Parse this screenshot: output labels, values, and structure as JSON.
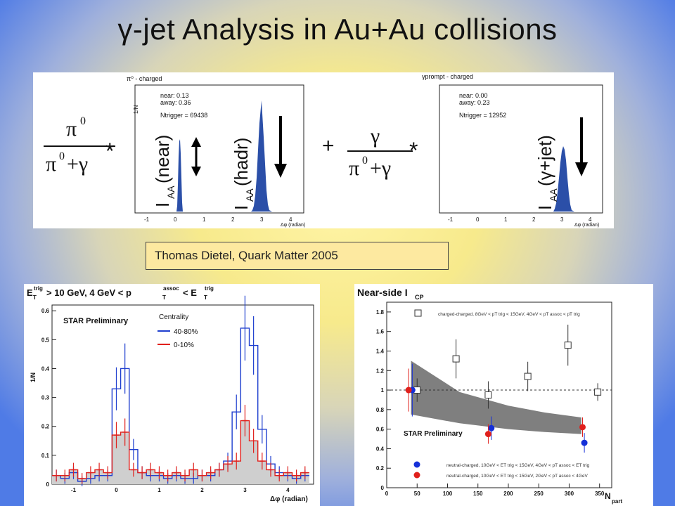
{
  "slide": {
    "title": "γ-jet Analysis in Au+Au collisions",
    "credit": "Thomas Dietel, Quark Matter 2005"
  },
  "top_panel": {
    "eq_pi0_num": "π",
    "eq_pi0_sup": "0",
    "eq_den_term": "+γ",
    "eq_gamma": "γ",
    "eq_star": "*",
    "eq_plus": "+",
    "hist1_title": "π⁰ - charged",
    "hist1_ylabel": "1/N",
    "hist1_near": "near: 0.13",
    "hist1_away": "away: 0.36",
    "hist1_ntrig": "Ntrigger = 69438",
    "hist1_xlabel": "Δφ (radian)",
    "hist1_xticks": [
      "-1",
      "0",
      "1",
      "2",
      "3",
      "4"
    ],
    "iaa_near_label": "I",
    "iaa_near_sub": "AA",
    "iaa_near_arg": "(near)",
    "iaa_hadr_arg": "(hadr)",
    "hist2_title": "γprompt - charged",
    "hist2_near": "near: 0.00",
    "hist2_away": "away: 0.23",
    "hist2_ntrig": "Ntrigger = 12952",
    "hist2_xlabel": "Δφ (radian)",
    "iaa_gamma_arg": "(γ+jet)"
  },
  "bottom_left": {
    "header": "E",
    "header_full_parts": [
      "E",
      "T",
      "trig",
      " > 10 GeV, 4 GeV < p",
      "T",
      "assoc",
      " < E",
      "T",
      "trig"
    ],
    "star_prelim": "STAR Preliminary",
    "legend_title": "Centrality",
    "legend": [
      {
        "name": "40-80%",
        "color": "#1f3fcf"
      },
      {
        "name": "0-10%",
        "color": "#e0201c"
      }
    ],
    "ylabel": "1/N",
    "xlabel": "Δφ (radian)",
    "chart_data": {
      "type": "line",
      "x_range": [
        -1.5,
        4.6
      ],
      "ylim": [
        0,
        0.62
      ],
      "yticks": [
        "0",
        "0.1",
        "0.2",
        "0.3",
        "0.4",
        "0.5",
        "0.6"
      ],
      "xticks": [
        "-1",
        "0",
        "1",
        "2",
        "3",
        "4"
      ],
      "x": [
        -1.4,
        -1.2,
        -1.0,
        -0.8,
        -0.6,
        -0.4,
        -0.2,
        0.0,
        0.2,
        0.4,
        0.6,
        0.8,
        1.0,
        1.2,
        1.4,
        1.6,
        1.8,
        2.0,
        2.2,
        2.4,
        2.6,
        2.8,
        3.0,
        3.2,
        3.4,
        3.6,
        3.8,
        4.0,
        4.2,
        4.4
      ],
      "series": [
        {
          "name": "40-80%",
          "color": "#1f3fcf",
          "values": [
            0.03,
            0.02,
            0.04,
            0.01,
            0.02,
            0.03,
            0.03,
            0.33,
            0.4,
            0.12,
            0.04,
            0.03,
            0.03,
            0.02,
            0.03,
            0.02,
            0.02,
            0.03,
            0.03,
            0.05,
            0.08,
            0.25,
            0.54,
            0.48,
            0.19,
            0.07,
            0.04,
            0.03,
            0.02,
            0.03
          ]
        },
        {
          "name": "0-10%",
          "color": "#e0201c",
          "values": [
            0.03,
            0.03,
            0.05,
            0.02,
            0.04,
            0.05,
            0.04,
            0.17,
            0.18,
            0.05,
            0.04,
            0.05,
            0.04,
            0.03,
            0.04,
            0.03,
            0.05,
            0.03,
            0.04,
            0.05,
            0.07,
            0.08,
            0.22,
            0.15,
            0.08,
            0.05,
            0.03,
            0.04,
            0.03,
            0.04
          ]
        }
      ]
    }
  },
  "bottom_right": {
    "title": "Near-side I",
    "title_sub": "CP",
    "star_prelim": "STAR Preliminary",
    "legend": [
      {
        "name": "charged-charged, 8GeV < pT trig < 15GeV, 4GeV < pT assoc < pT trig",
        "marker": "open-square"
      },
      {
        "name": "neutral-charged, 10GeV < ET trig < 15GeV, 4GeV < pT assoc < ET trig",
        "marker": "blue-circle",
        "color": "#1530d8"
      },
      {
        "name": "neutral-charged, 10GeV < ET trig < 15GeV, 2GeV < pT assoc < 4GeV",
        "marker": "red-circle",
        "color": "#e0201c"
      }
    ],
    "xlabel": "N",
    "xlabel_sub": "part",
    "chart_data": {
      "type": "scatter",
      "xlim": [
        0,
        370
      ],
      "ylim": [
        0,
        1.9
      ],
      "xticks": [
        "0",
        "50",
        "100",
        "150",
        "200",
        "250",
        "300",
        "350"
      ],
      "yticks": [
        "0",
        "0.2",
        "0.4",
        "0.6",
        "0.8",
        "1",
        "1.2",
        "1.4",
        "1.6",
        "1.8"
      ],
      "band": {
        "x": [
          40,
          120,
          200,
          260,
          320
        ],
        "low": [
          0.75,
          0.66,
          0.6,
          0.57,
          0.55
        ],
        "high": [
          1.3,
          0.98,
          0.84,
          0.77,
          0.72
        ]
      },
      "series": [
        {
          "name": "charged-charged",
          "x": [
            50,
            114,
            167,
            232,
            298,
            347
          ],
          "y": [
            1.0,
            1.32,
            0.95,
            1.14,
            1.46,
            0.98
          ],
          "err": [
            0.12,
            0.2,
            0.14,
            0.15,
            0.21,
            0.09
          ]
        },
        {
          "name": "neutral-charged 4GeV",
          "x": [
            42,
            172,
            325
          ],
          "y": [
            1.0,
            0.61,
            0.46
          ],
          "err": [
            0.27,
            0.12,
            0.1
          ]
        },
        {
          "name": "neutral-charged 2GeV",
          "x": [
            36,
            167,
            322
          ],
          "y": [
            1.0,
            0.55,
            0.62
          ],
          "err": [
            0.22,
            0.1,
            0.1
          ]
        }
      ]
    }
  }
}
